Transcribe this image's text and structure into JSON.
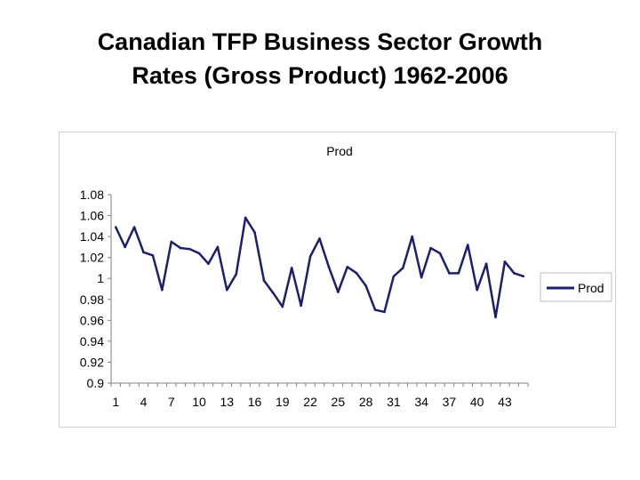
{
  "title": {
    "line1": "Canadian TFP Business Sector Growth",
    "line2": "Rates (Gross Product) 1962-2006"
  },
  "chart_data": {
    "type": "line",
    "title": "Prod",
    "xlabel": "",
    "ylabel": "",
    "ylim": [
      0.9,
      1.08
    ],
    "yticks": [
      "1.08",
      "1.06",
      "1.04",
      "1.02",
      "1",
      "0.98",
      "0.96",
      "0.94",
      "0.92",
      "0.9"
    ],
    "ytick_values": [
      1.08,
      1.06,
      1.04,
      1.02,
      1.0,
      0.98,
      0.96,
      0.94,
      0.92,
      0.9
    ],
    "xticks": [
      "1",
      "4",
      "7",
      "10",
      "13",
      "16",
      "19",
      "22",
      "25",
      "28",
      "31",
      "34",
      "37",
      "40",
      "43"
    ],
    "xtick_values": [
      1,
      4,
      7,
      10,
      13,
      16,
      19,
      22,
      25,
      28,
      31,
      34,
      37,
      40,
      43
    ],
    "grid": false,
    "legend": "right",
    "line_color": "#1a1f6e",
    "series": [
      {
        "name": "Prod",
        "x": [
          1,
          2,
          3,
          4,
          5,
          6,
          7,
          8,
          9,
          10,
          11,
          12,
          13,
          14,
          15,
          16,
          17,
          18,
          19,
          20,
          21,
          22,
          23,
          24,
          25,
          26,
          27,
          28,
          29,
          30,
          31,
          32,
          33,
          34,
          35,
          36,
          37,
          38,
          39,
          40,
          41,
          42,
          43,
          44,
          45
        ],
        "values": [
          1.049,
          1.03,
          1.049,
          1.025,
          1.022,
          0.989,
          1.035,
          1.029,
          1.028,
          1.024,
          1.014,
          1.03,
          0.989,
          1.004,
          1.058,
          1.044,
          0.998,
          0.986,
          0.973,
          1.01,
          0.974,
          1.021,
          1.038,
          1.011,
          0.987,
          1.011,
          1.005,
          0.993,
          0.97,
          0.968,
          1.002,
          1.01,
          1.04,
          1.001,
          1.029,
          1.024,
          1.005,
          1.005,
          1.032,
          0.989,
          1.014,
          0.963,
          1.016,
          1.005,
          1.002
        ]
      }
    ]
  }
}
